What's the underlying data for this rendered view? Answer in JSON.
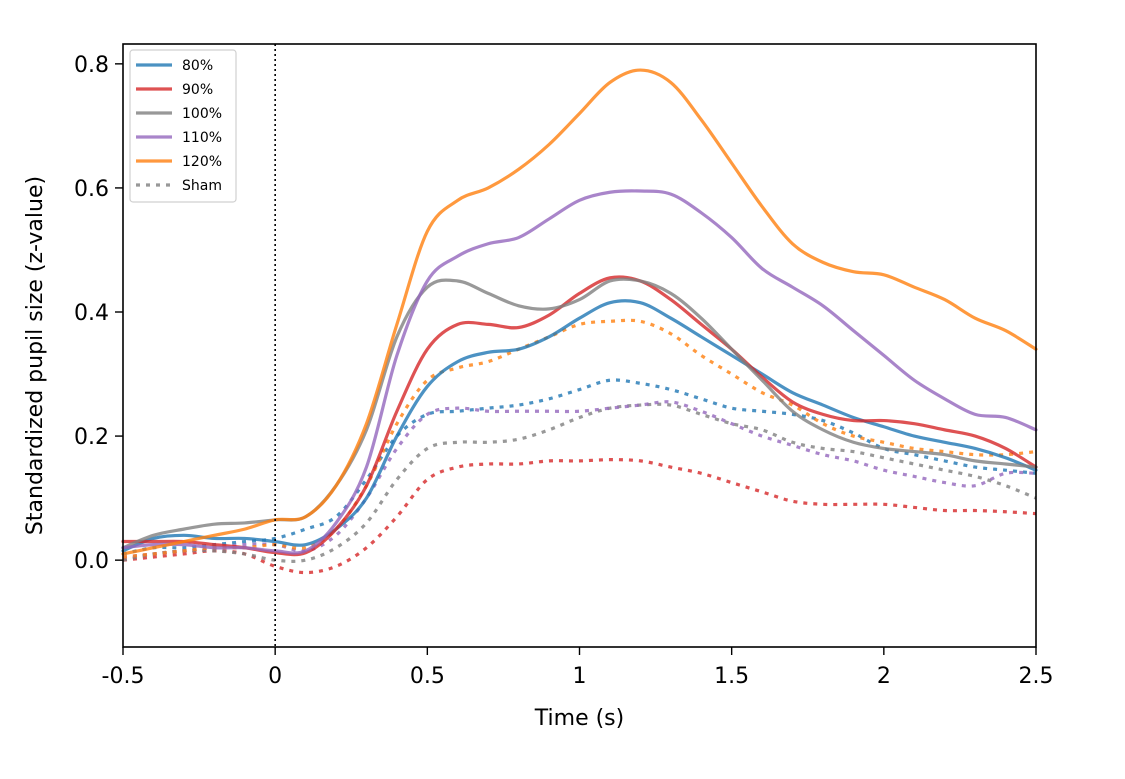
{
  "chart_data": {
    "type": "line",
    "title": "",
    "xlabel": "Time (s)",
    "ylabel": "Standardized pupil size (z-value)",
    "xlim": [
      -0.5,
      2.5
    ],
    "ylim": [
      -0.14,
      0.832
    ],
    "xticks": [
      -0.5,
      0,
      0.5,
      1,
      1.5,
      2,
      2.5
    ],
    "xtick_labels": [
      "-0.5",
      "0",
      "0.5",
      "1",
      "1.5",
      "2",
      "2.5"
    ],
    "yticks": [
      0.0,
      0.2,
      0.4,
      0.6,
      0.8
    ],
    "ytick_labels": [
      "0.0",
      "0.2",
      "0.4",
      "0.6",
      "0.8"
    ],
    "grid": false,
    "legend_position": "top-left",
    "vline": {
      "x": 0,
      "style": "dotted",
      "color": "#000000"
    },
    "legend": [
      {
        "label": "80%",
        "color": "#1f77b4",
        "style": "solid"
      },
      {
        "label": "90%",
        "color": "#d62728",
        "style": "solid"
      },
      {
        "label": "100%",
        "color": "#7f7f7f",
        "style": "solid"
      },
      {
        "label": "110%",
        "color": "#9467bd",
        "style": "solid"
      },
      {
        "label": "120%",
        "color": "#ff7f0e",
        "style": "solid"
      },
      {
        "label": "Sham",
        "color": "#7f7f7f",
        "style": "dotted"
      }
    ],
    "x": [
      -0.5,
      -0.4,
      -0.3,
      -0.2,
      -0.1,
      0,
      0.1,
      0.2,
      0.3,
      0.4,
      0.5,
      0.6,
      0.7,
      0.8,
      0.9,
      1.0,
      1.1,
      1.2,
      1.3,
      1.4,
      1.5,
      1.6,
      1.7,
      1.8,
      1.9,
      2.0,
      2.1,
      2.2,
      2.3,
      2.4,
      2.5
    ],
    "series": [
      {
        "name": "80% Sham",
        "color": "#1f77b4",
        "style": "dotted",
        "values": [
          0.01,
          0.02,
          0.02,
          0.025,
          0.03,
          0.035,
          0.05,
          0.07,
          0.13,
          0.2,
          0.235,
          0.24,
          0.245,
          0.25,
          0.26,
          0.275,
          0.29,
          0.285,
          0.275,
          0.26,
          0.245,
          0.24,
          0.235,
          0.225,
          0.205,
          0.18,
          0.17,
          0.16,
          0.15,
          0.145,
          0.14
        ]
      },
      {
        "name": "90% Sham",
        "color": "#d62728",
        "style": "dotted",
        "values": [
          0.0,
          0.005,
          0.01,
          0.015,
          0.01,
          -0.01,
          -0.02,
          -0.01,
          0.02,
          0.07,
          0.13,
          0.15,
          0.155,
          0.155,
          0.16,
          0.16,
          0.162,
          0.16,
          0.15,
          0.14,
          0.125,
          0.11,
          0.095,
          0.09,
          0.09,
          0.09,
          0.085,
          0.08,
          0.08,
          0.078,
          0.075
        ]
      },
      {
        "name": "100% Sham",
        "color": "#7f7f7f",
        "style": "dotted",
        "values": [
          0.0,
          0.01,
          0.015,
          0.015,
          0.01,
          0.0,
          0.0,
          0.02,
          0.06,
          0.13,
          0.18,
          0.19,
          0.19,
          0.195,
          0.21,
          0.23,
          0.245,
          0.25,
          0.25,
          0.235,
          0.22,
          0.21,
          0.19,
          0.18,
          0.175,
          0.165,
          0.155,
          0.145,
          0.135,
          0.12,
          0.1
        ]
      },
      {
        "name": "110% Sham",
        "color": "#9467bd",
        "style": "dotted",
        "values": [
          0.005,
          0.01,
          0.015,
          0.02,
          0.025,
          0.025,
          0.015,
          0.04,
          0.1,
          0.18,
          0.235,
          0.245,
          0.24,
          0.24,
          0.24,
          0.24,
          0.245,
          0.25,
          0.255,
          0.24,
          0.22,
          0.2,
          0.185,
          0.17,
          0.16,
          0.145,
          0.135,
          0.125,
          0.12,
          0.14,
          0.14
        ]
      },
      {
        "name": "120% Sham",
        "color": "#ff7f0e",
        "style": "dotted",
        "values": [
          0.005,
          0.01,
          0.015,
          0.02,
          0.02,
          0.025,
          0.02,
          0.05,
          0.12,
          0.22,
          0.29,
          0.31,
          0.32,
          0.34,
          0.36,
          0.38,
          0.385,
          0.385,
          0.365,
          0.33,
          0.3,
          0.27,
          0.25,
          0.22,
          0.2,
          0.19,
          0.18,
          0.175,
          0.17,
          0.17,
          0.175
        ]
      },
      {
        "name": "80%",
        "color": "#1f77b4",
        "style": "solid",
        "values": [
          0.015,
          0.035,
          0.04,
          0.035,
          0.035,
          0.03,
          0.025,
          0.05,
          0.1,
          0.2,
          0.28,
          0.32,
          0.335,
          0.34,
          0.36,
          0.39,
          0.415,
          0.415,
          0.39,
          0.36,
          0.33,
          0.3,
          0.27,
          0.25,
          0.23,
          0.215,
          0.2,
          0.19,
          0.18,
          0.165,
          0.145
        ]
      },
      {
        "name": "90%",
        "color": "#d62728",
        "style": "solid",
        "values": [
          0.03,
          0.03,
          0.03,
          0.025,
          0.02,
          0.012,
          0.012,
          0.05,
          0.12,
          0.24,
          0.34,
          0.38,
          0.38,
          0.375,
          0.395,
          0.43,
          0.455,
          0.45,
          0.42,
          0.38,
          0.34,
          0.295,
          0.255,
          0.235,
          0.225,
          0.225,
          0.22,
          0.21,
          0.2,
          0.18,
          0.15
        ]
      },
      {
        "name": "100%",
        "color": "#7f7f7f",
        "style": "solid",
        "values": [
          0.02,
          0.04,
          0.05,
          0.058,
          0.06,
          0.065,
          0.07,
          0.12,
          0.21,
          0.36,
          0.44,
          0.45,
          0.43,
          0.41,
          0.405,
          0.42,
          0.45,
          0.45,
          0.43,
          0.39,
          0.34,
          0.29,
          0.24,
          0.21,
          0.19,
          0.18,
          0.175,
          0.17,
          0.16,
          0.155,
          0.15
        ]
      },
      {
        "name": "110%",
        "color": "#9467bd",
        "style": "solid",
        "values": [
          0.02,
          0.025,
          0.025,
          0.02,
          0.02,
          0.015,
          0.015,
          0.06,
          0.15,
          0.33,
          0.45,
          0.49,
          0.51,
          0.52,
          0.55,
          0.58,
          0.593,
          0.595,
          0.59,
          0.56,
          0.52,
          0.47,
          0.44,
          0.41,
          0.37,
          0.33,
          0.29,
          0.26,
          0.235,
          0.23,
          0.21
        ]
      },
      {
        "name": "120%",
        "color": "#ff7f0e",
        "style": "solid",
        "values": [
          0.01,
          0.02,
          0.03,
          0.04,
          0.05,
          0.065,
          0.07,
          0.12,
          0.22,
          0.38,
          0.53,
          0.58,
          0.6,
          0.63,
          0.67,
          0.72,
          0.77,
          0.79,
          0.77,
          0.71,
          0.64,
          0.57,
          0.51,
          0.48,
          0.465,
          0.46,
          0.44,
          0.42,
          0.39,
          0.37,
          0.34
        ]
      }
    ]
  }
}
